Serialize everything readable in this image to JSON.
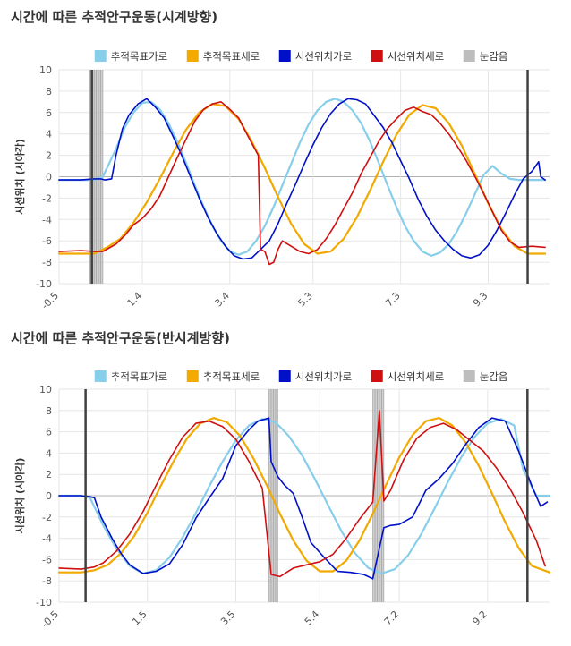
{
  "colors": {
    "target_x": "#87ceeb",
    "target_y": "#f2a900",
    "gaze_x": "#0010c8",
    "gaze_y": "#d01010",
    "blink": "#bdbdbd",
    "marker": "#404040",
    "grid": "#e6e6e6",
    "zero_line": "#b0b0b0"
  },
  "chart_data": [
    {
      "type": "line",
      "title": "시간에 따른 추적안구운동(시계방향)",
      "ylabel": "시선위치 (시야각)",
      "ylim": [
        -10,
        10
      ],
      "yticks": [
        10,
        8,
        6,
        4,
        2,
        0,
        -2,
        -4,
        -6,
        -8,
        -10
      ],
      "xlim": [
        -0.5,
        10.7
      ],
      "xticks": [
        -0.5,
        1.4,
        3.4,
        5.3,
        7.3,
        9.3
      ],
      "xtick_labels": [
        "-0.5",
        "1.4",
        "3.4",
        "5.3",
        "7.3",
        "9.3"
      ],
      "legend": [
        "추적목표가로",
        "추적목표세로",
        "시선위치가로",
        "시선위치세로",
        "눈감음"
      ],
      "legend_position": "top",
      "grid": true,
      "markers": [
        0.25,
        10.2
      ],
      "blink_intervals": [
        [
          0.2,
          0.5
        ]
      ],
      "series": [
        {
          "name": "추적목표가로",
          "x": [
            -0.5,
            0.3,
            0.5,
            0.8,
            1.0,
            1.2,
            1.4,
            1.6,
            1.8,
            2.0,
            2.2,
            2.4,
            2.6,
            2.8,
            3.0,
            3.2,
            3.4,
            3.6,
            3.8,
            4.0,
            4.2,
            4.4,
            4.6,
            4.8,
            5.0,
            5.2,
            5.4,
            5.6,
            5.8,
            6.0,
            6.2,
            6.4,
            6.6,
            6.8,
            7.0,
            7.2,
            7.4,
            7.6,
            7.8,
            8.0,
            8.2,
            8.4,
            8.6,
            8.8,
            9.0,
            9.2,
            9.4,
            9.6,
            9.8,
            10.0,
            10.3,
            10.6
          ],
          "values": [
            -0.3,
            -0.3,
            0.0,
            2.6,
            4.6,
            6.0,
            6.9,
            7.0,
            6.3,
            5.0,
            3.3,
            1.3,
            -0.8,
            -2.8,
            -4.6,
            -6.0,
            -7.0,
            -7.3,
            -7.0,
            -6.0,
            -4.6,
            -2.8,
            -0.8,
            1.2,
            3.2,
            4.9,
            6.2,
            7.0,
            7.3,
            7.0,
            6.2,
            5.0,
            3.3,
            1.3,
            -0.8,
            -2.8,
            -4.6,
            -6.0,
            -7.0,
            -7.4,
            -7.1,
            -6.3,
            -5.0,
            -3.4,
            -1.6,
            0.2,
            1.0,
            0.3,
            -0.2,
            -0.3,
            -0.3,
            -0.3
          ]
        },
        {
          "name": "추적목표세로",
          "x": [
            -0.5,
            0.3,
            0.6,
            0.9,
            1.2,
            1.5,
            1.8,
            2.1,
            2.4,
            2.7,
            3.0,
            3.3,
            3.6,
            3.9,
            4.2,
            4.5,
            4.8,
            5.1,
            5.4,
            5.7,
            6.0,
            6.3,
            6.6,
            6.9,
            7.2,
            7.5,
            7.8,
            8.1,
            8.4,
            8.7,
            9.0,
            9.3,
            9.6,
            9.9,
            10.2,
            10.6
          ],
          "values": [
            -7.2,
            -7.2,
            -6.6,
            -5.8,
            -4.3,
            -2.4,
            -0.2,
            2.2,
            4.4,
            6.0,
            6.8,
            6.6,
            5.4,
            3.3,
            0.8,
            -1.9,
            -4.4,
            -6.3,
            -7.2,
            -7.0,
            -5.8,
            -3.8,
            -1.3,
            1.4,
            3.9,
            5.8,
            6.7,
            6.4,
            5.0,
            2.9,
            0.2,
            -2.5,
            -4.9,
            -6.5,
            -7.2,
            -7.2
          ]
        },
        {
          "name": "시선위치가로",
          "x": [
            -0.5,
            0.0,
            0.3,
            0.45,
            0.55,
            0.7,
            0.8,
            0.95,
            1.1,
            1.3,
            1.5,
            1.7,
            1.9,
            2.1,
            2.3,
            2.5,
            2.7,
            2.9,
            3.1,
            3.3,
            3.5,
            3.7,
            3.9,
            4.1,
            4.3,
            4.5,
            4.7,
            4.9,
            5.1,
            5.3,
            5.5,
            5.7,
            5.9,
            6.1,
            6.3,
            6.5,
            6.7,
            6.9,
            7.1,
            7.3,
            7.5,
            7.7,
            7.9,
            8.1,
            8.3,
            8.5,
            8.7,
            8.9,
            9.1,
            9.3,
            9.5,
            9.7,
            9.9,
            10.1,
            10.3,
            10.45,
            10.5,
            10.6
          ],
          "values": [
            -0.3,
            -0.3,
            -0.2,
            -0.2,
            -0.3,
            -0.2,
            2.0,
            4.5,
            5.8,
            6.8,
            7.3,
            6.5,
            5.5,
            3.8,
            2.0,
            0.0,
            -2.0,
            -3.8,
            -5.3,
            -6.5,
            -7.4,
            -7.7,
            -7.6,
            -6.8,
            -6.0,
            -4.4,
            -2.5,
            -0.7,
            1.2,
            3.0,
            4.6,
            5.9,
            6.8,
            7.3,
            7.2,
            6.8,
            5.7,
            4.6,
            3.2,
            1.5,
            -0.2,
            -2.1,
            -3.7,
            -5.0,
            -6.0,
            -6.8,
            -7.4,
            -7.6,
            -7.3,
            -6.4,
            -5.0,
            -3.4,
            -1.7,
            -0.2,
            0.5,
            1.4,
            0.0,
            -0.3
          ]
        },
        {
          "name": "시선위치세로",
          "x": [
            -0.5,
            0.0,
            0.3,
            0.5,
            0.8,
            1.0,
            1.2,
            1.4,
            1.6,
            1.8,
            2.0,
            2.2,
            2.4,
            2.6,
            2.8,
            3.0,
            3.2,
            3.4,
            3.6,
            3.8,
            4.05,
            4.1,
            4.2,
            4.3,
            4.4,
            4.5,
            4.6,
            4.8,
            5.0,
            5.2,
            5.4,
            5.6,
            5.8,
            6.0,
            6.2,
            6.4,
            6.6,
            6.8,
            7.0,
            7.2,
            7.4,
            7.6,
            7.8,
            8.0,
            8.2,
            8.4,
            8.6,
            8.8,
            9.0,
            9.2,
            9.4,
            9.6,
            9.8,
            10.0,
            10.3,
            10.6
          ],
          "values": [
            -7.0,
            -6.9,
            -7.0,
            -7.0,
            -6.3,
            -5.5,
            -4.5,
            -3.9,
            -3.0,
            -1.8,
            0.0,
            1.8,
            3.5,
            5.2,
            6.3,
            6.8,
            7.0,
            6.3,
            5.5,
            3.9,
            2.0,
            -6.8,
            -7.0,
            -8.2,
            -8.0,
            -6.8,
            -6.0,
            -6.5,
            -7.0,
            -7.2,
            -6.8,
            -5.8,
            -4.5,
            -3.0,
            -1.5,
            0.3,
            1.8,
            3.3,
            4.5,
            5.4,
            6.2,
            6.5,
            6.1,
            5.8,
            5.0,
            4.0,
            2.8,
            1.5,
            0.0,
            -1.6,
            -3.3,
            -5.0,
            -6.1,
            -6.6,
            -6.5,
            -6.6
          ]
        }
      ]
    },
    {
      "type": "line",
      "title": "시간에 따른 추적안구운동(반시계방향)",
      "ylabel": "시선위치 (시야각)",
      "ylim": [
        -10,
        10
      ],
      "yticks": [
        10,
        8,
        6,
        4,
        2,
        0,
        -2,
        -4,
        -6,
        -8,
        -10
      ],
      "xlim": [
        -0.5,
        10.6
      ],
      "xticks": [
        -0.5,
        1.5,
        3.5,
        5.4,
        7.2,
        9.2
      ],
      "xtick_labels": [
        "-0.5",
        "1.5",
        "3.5",
        "5.4",
        "7.2",
        "9.2"
      ],
      "legend": [
        "추적목표가로",
        "추적목표세로",
        "시선위치가로",
        "시선위치세로",
        "눈감음"
      ],
      "legend_position": "top",
      "grid": true,
      "markers": [
        0.1,
        10.1
      ],
      "blink_intervals": [
        [
          4.25,
          4.45
        ],
        [
          6.6,
          6.85
        ]
      ],
      "series": [
        {
          "name": "추적목표가로",
          "x": [
            -0.5,
            0.0,
            0.2,
            0.5,
            0.8,
            1.1,
            1.4,
            1.7,
            2.0,
            2.3,
            2.6,
            2.9,
            3.2,
            3.5,
            3.8,
            4.1,
            4.4,
            4.7,
            5.0,
            5.3,
            5.6,
            5.9,
            6.2,
            6.5,
            6.8,
            7.1,
            7.4,
            7.7,
            8.0,
            8.3,
            8.6,
            8.9,
            9.2,
            9.5,
            9.8,
            10.0,
            10.3,
            10.6
          ],
          "values": [
            0.0,
            0.0,
            -0.2,
            -2.8,
            -5.0,
            -6.6,
            -7.3,
            -7.0,
            -5.8,
            -3.9,
            -1.6,
            0.9,
            3.2,
            5.2,
            6.6,
            7.2,
            6.9,
            5.6,
            3.8,
            1.5,
            -1.0,
            -3.4,
            -5.4,
            -6.8,
            -7.3,
            -6.9,
            -5.6,
            -3.6,
            -1.2,
            1.3,
            3.6,
            5.5,
            6.8,
            7.2,
            6.6,
            2.5,
            0.0,
            0.0
          ]
        },
        {
          "name": "추적목표세로",
          "x": [
            -0.5,
            0.0,
            0.3,
            0.6,
            0.9,
            1.2,
            1.5,
            1.8,
            2.1,
            2.4,
            2.7,
            3.0,
            3.3,
            3.6,
            3.9,
            4.2,
            4.5,
            4.8,
            5.1,
            5.4,
            5.7,
            6.0,
            6.3,
            6.6,
            6.9,
            7.2,
            7.5,
            7.8,
            8.1,
            8.4,
            8.7,
            9.0,
            9.3,
            9.6,
            9.9,
            10.2,
            10.6
          ],
          "values": [
            -7.2,
            -7.2,
            -7.0,
            -6.5,
            -5.4,
            -3.8,
            -1.6,
            0.9,
            3.3,
            5.4,
            6.8,
            7.3,
            6.9,
            5.6,
            3.5,
            1.0,
            -1.7,
            -4.2,
            -6.1,
            -7.1,
            -7.1,
            -6.1,
            -4.2,
            -1.7,
            1.0,
            3.6,
            5.7,
            7.0,
            7.3,
            6.6,
            5.0,
            2.8,
            0.2,
            -2.5,
            -4.9,
            -6.6,
            -7.2
          ]
        },
        {
          "name": "시선위치가로",
          "x": [
            -0.5,
            0.0,
            0.2,
            0.3,
            0.45,
            0.7,
            0.9,
            1.1,
            1.4,
            1.7,
            2.0,
            2.3,
            2.6,
            2.9,
            3.2,
            3.5,
            3.8,
            4.0,
            4.25,
            4.3,
            4.45,
            4.6,
            4.8,
            5.0,
            5.2,
            5.5,
            5.8,
            6.1,
            6.4,
            6.6,
            6.85,
            7.0,
            7.2,
            7.5,
            7.8,
            8.1,
            8.4,
            8.7,
            9.0,
            9.3,
            9.6,
            9.9,
            10.2,
            10.4,
            10.55
          ],
          "values": [
            0.0,
            0.0,
            -0.1,
            -0.2,
            -2.0,
            -4.0,
            -5.4,
            -6.5,
            -7.3,
            -7.1,
            -6.4,
            -4.6,
            -2.1,
            -0.2,
            1.6,
            4.7,
            6.2,
            7.0,
            7.3,
            3.2,
            1.8,
            1.0,
            0.2,
            -2.0,
            -4.4,
            -5.8,
            -7.1,
            -7.2,
            -7.4,
            -7.8,
            -3.0,
            -2.8,
            -2.7,
            -2.0,
            0.5,
            1.6,
            3.0,
            4.8,
            6.4,
            7.3,
            7.0,
            4.2,
            0.9,
            -1.0,
            -0.6
          ]
        },
        {
          "name": "시선위치세로",
          "x": [
            -0.5,
            0.0,
            0.3,
            0.5,
            0.8,
            1.1,
            1.4,
            1.7,
            2.0,
            2.3,
            2.6,
            2.9,
            3.2,
            3.5,
            3.8,
            4.1,
            4.3,
            4.5,
            4.8,
            5.1,
            5.4,
            5.7,
            6.0,
            6.3,
            6.6,
            6.75,
            6.85,
            7.0,
            7.3,
            7.6,
            7.9,
            8.2,
            8.5,
            8.8,
            9.1,
            9.4,
            9.7,
            10.0,
            10.3,
            10.5
          ],
          "values": [
            -6.8,
            -6.9,
            -6.7,
            -6.3,
            -5.2,
            -3.6,
            -1.5,
            1.0,
            3.4,
            5.5,
            6.8,
            7.0,
            6.5,
            5.3,
            3.2,
            0.7,
            -7.4,
            -7.6,
            -6.8,
            -6.5,
            -6.2,
            -5.5,
            -4.0,
            -2.2,
            -0.6,
            8.0,
            -0.5,
            0.5,
            3.4,
            5.4,
            6.4,
            6.8,
            6.2,
            5.2,
            4.2,
            2.6,
            0.7,
            -1.6,
            -4.2,
            -6.6
          ]
        }
      ]
    }
  ]
}
